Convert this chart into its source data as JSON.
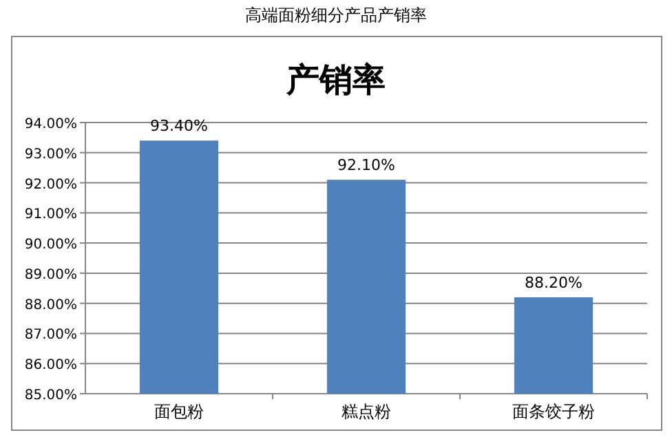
{
  "chart_data": {
    "type": "bar",
    "title": "产销率",
    "annotations": [
      "高端面粉细分产品产销率"
    ],
    "categories": [
      "面包粉",
      "糕点粉",
      "面条饺子粉"
    ],
    "values": [
      93.4,
      92.1,
      88.2
    ],
    "value_labels": [
      "93.40%",
      "92.10%",
      "88.20%"
    ],
    "color": "#4f81bd",
    "ylim": [
      85,
      94
    ],
    "yticks": [
      {
        "value": 85,
        "label": "85.00%"
      },
      {
        "value": 86,
        "label": "86.00%"
      },
      {
        "value": 87,
        "label": "87.00%"
      },
      {
        "value": 88,
        "label": "88.00%"
      },
      {
        "value": 89,
        "label": "89.00%"
      },
      {
        "value": 90,
        "label": "90.00%"
      },
      {
        "value": 91,
        "label": "91.00%"
      },
      {
        "value": 92,
        "label": "92.00%"
      },
      {
        "value": 93,
        "label": "93.00%"
      },
      {
        "value": 94,
        "label": "94.00%"
      }
    ],
    "grid": "y"
  }
}
